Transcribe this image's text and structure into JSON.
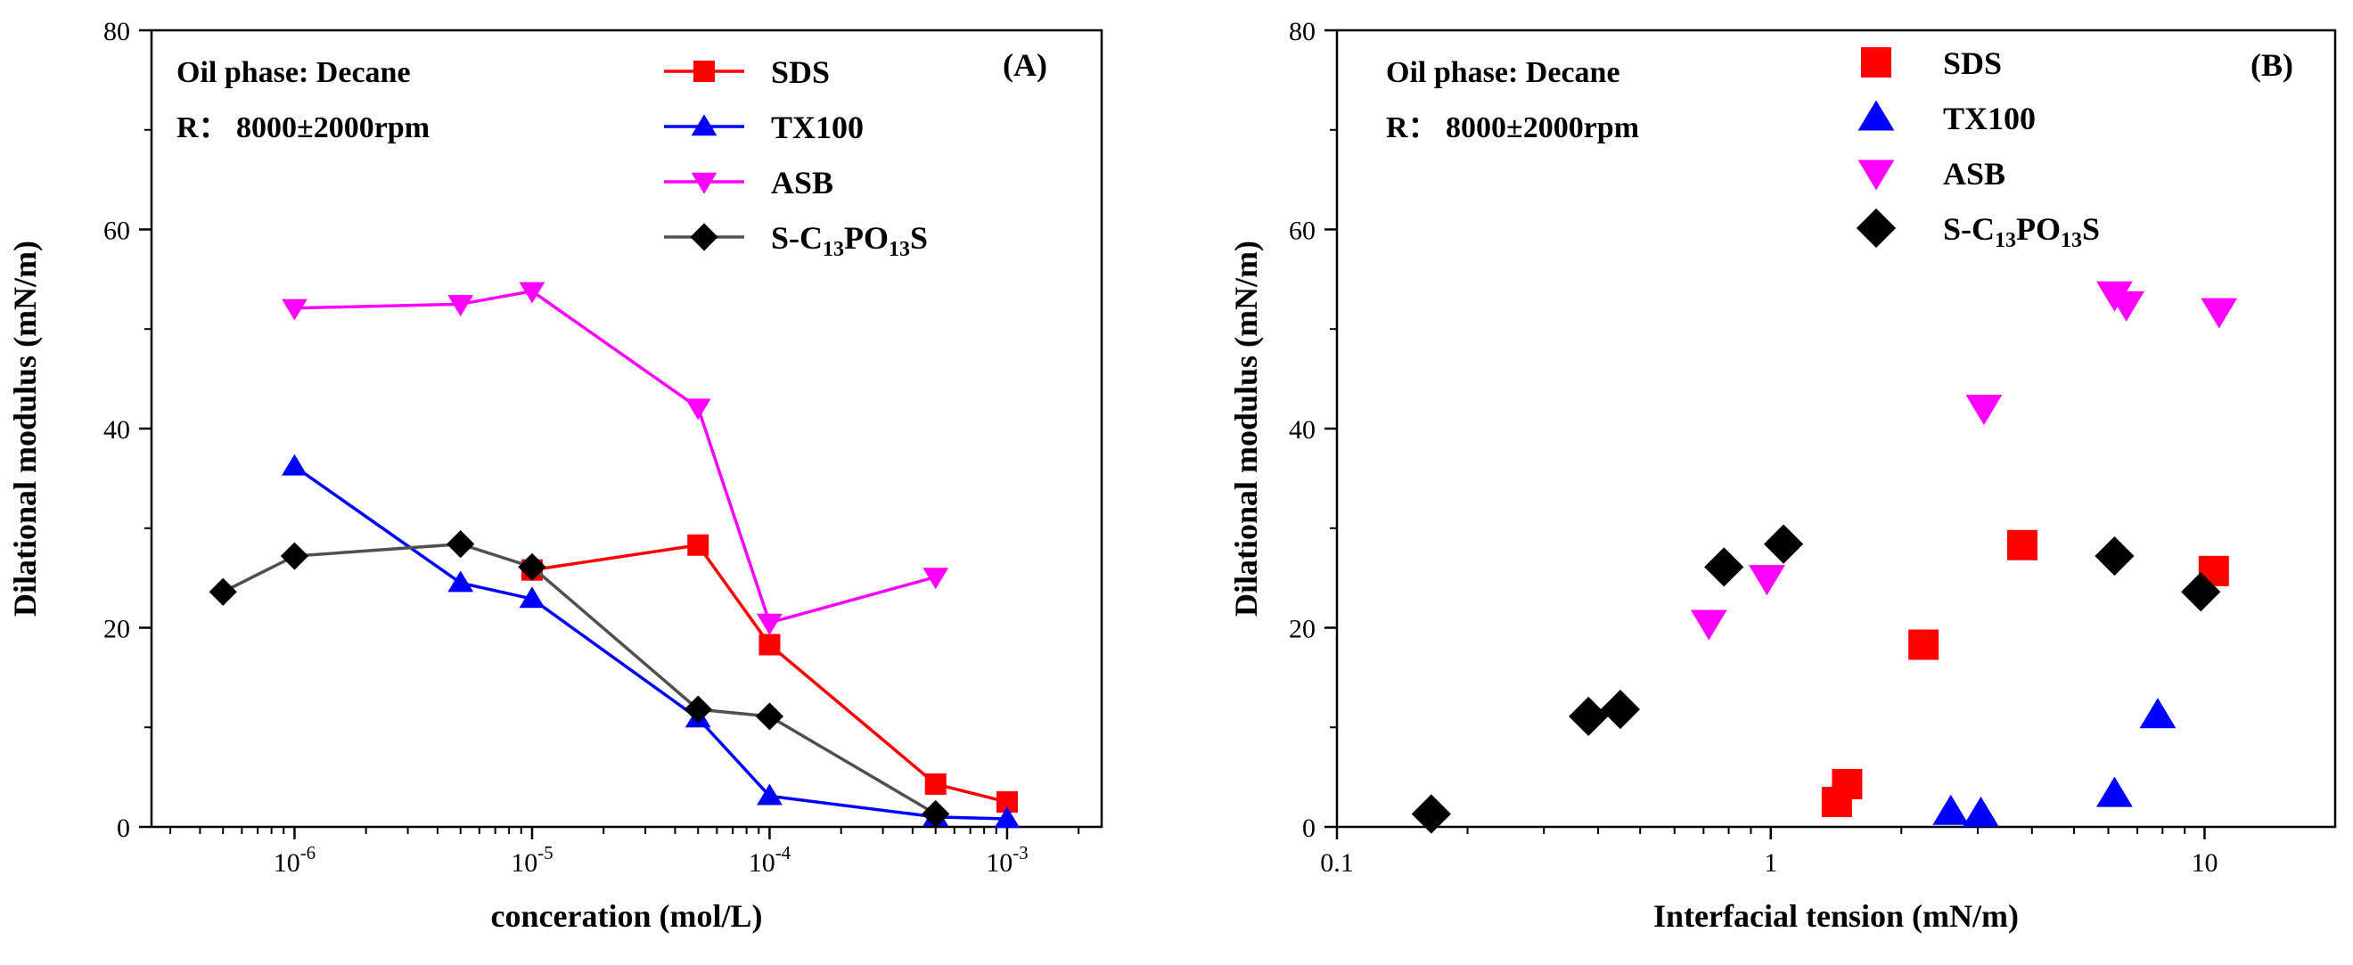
{
  "chart_data": [
    {
      "type": "line",
      "panel_label": "(A)",
      "xlabel": "conceration (mol/L)",
      "ylabel": "Dilational modulus (mN/m)",
      "xscale": "log",
      "xlim": [
        2.5e-07,
        0.0025
      ],
      "ylim": [
        0,
        80
      ],
      "yticks": [
        0,
        20,
        40,
        60,
        80
      ],
      "xticks": [
        {
          "value": 1e-06,
          "mantissa": "10",
          "exp": "-6"
        },
        {
          "value": 1e-05,
          "mantissa": "10",
          "exp": "-5"
        },
        {
          "value": 0.0001,
          "mantissa": "10",
          "exp": "-4"
        },
        {
          "value": 0.001,
          "mantissa": "10",
          "exp": "-3"
        }
      ],
      "annotations": [
        "Oil phase: Decane",
        "R： 8000±2000rpm"
      ],
      "legend_position": "top-right",
      "series": [
        {
          "name": "SDS",
          "color": "#ff0000",
          "marker": "square",
          "x": [
            1e-05,
            5e-05,
            0.0001,
            0.0005,
            0.001
          ],
          "y": [
            25.8,
            28.3,
            18.3,
            4.3,
            2.5
          ]
        },
        {
          "name": "TX100",
          "color": "#0000ff",
          "marker": "triangle-up",
          "x": [
            1e-06,
            5e-06,
            1e-05,
            5e-05,
            0.0001,
            0.0005,
            0.001
          ],
          "y": [
            36.2,
            24.5,
            22.9,
            10.9,
            3.1,
            1.0,
            0.8
          ]
        },
        {
          "name": "ASB",
          "color": "#ff00ff",
          "marker": "triangle-down",
          "x": [
            1e-06,
            5e-06,
            1e-05,
            5e-05,
            0.0001,
            0.0005
          ],
          "y": [
            52.1,
            52.5,
            53.8,
            42.1,
            20.5,
            25.1
          ]
        },
        {
          "name": "S-C13PO13S",
          "label_parts": [
            "S-C",
            "13",
            "PO",
            "13",
            "S"
          ],
          "color": "#505050",
          "marker_color": "#000000",
          "marker": "diamond",
          "x": [
            5e-07,
            1e-06,
            5e-06,
            1e-05,
            5e-05,
            0.0001,
            0.0005
          ],
          "y": [
            23.6,
            27.2,
            28.4,
            26.1,
            11.8,
            11.1,
            1.3
          ]
        }
      ]
    },
    {
      "type": "scatter",
      "panel_label": "(B)",
      "xlabel": "Interfacial tension (mN/m)",
      "ylabel": "Dilational modulus (mN/m)",
      "xscale": "log",
      "xlim": [
        0.1,
        20
      ],
      "ylim": [
        0,
        80
      ],
      "yticks": [
        0,
        20,
        40,
        60,
        80
      ],
      "xticks": [
        {
          "value": 0.1,
          "label": "0.1"
        },
        {
          "value": 1,
          "label": "1"
        },
        {
          "value": 10,
          "label": "10"
        }
      ],
      "annotations": [
        "Oil phase: Decane",
        "R： 8000±2000rpm"
      ],
      "legend_position": "top-left",
      "series": [
        {
          "name": "SDS",
          "color": "#ff0000",
          "marker": "square",
          "x": [
            10.5,
            3.8,
            2.25,
            1.5,
            1.42
          ],
          "y": [
            25.7,
            28.3,
            18.3,
            4.3,
            2.5
          ]
        },
        {
          "name": "TX100",
          "color": "#0000ff",
          "marker": "triangle-up",
          "x": [
            7.8,
            6.2,
            2.6,
            3.05
          ],
          "y": [
            11.2,
            3.3,
            1.5,
            1.3
          ]
        },
        {
          "name": "ASB",
          "color": "#ff00ff",
          "marker": "triangle-down",
          "x": [
            10.8,
            6.2,
            6.6,
            3.1,
            0.98,
            0.72
          ],
          "y": [
            51.8,
            53.5,
            52.5,
            42.1,
            25.0,
            20.5
          ]
        },
        {
          "name": "S-C13PO13S",
          "label_parts": [
            "S-C",
            "13",
            "PO",
            "13",
            "S"
          ],
          "color": "#000000",
          "marker": "diamond",
          "x": [
            0.165,
            0.38,
            0.45,
            0.78,
            1.07,
            6.2,
            9.8
          ],
          "y": [
            1.3,
            11.1,
            11.8,
            26.1,
            28.4,
            27.2,
            23.6
          ]
        }
      ]
    }
  ]
}
